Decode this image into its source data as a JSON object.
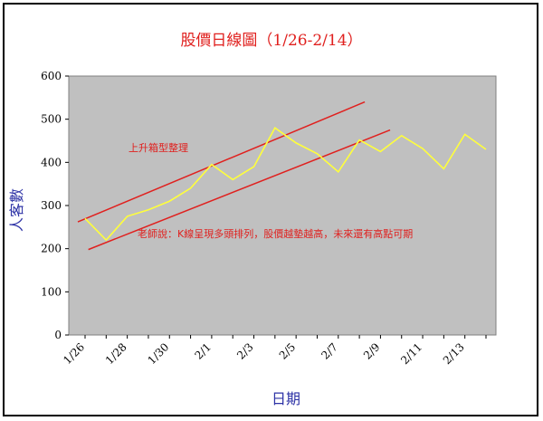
{
  "chart_data": {
    "type": "line",
    "title": "股價日線圖（1/26-2/14）",
    "xlabel": "日期",
    "ylabel": "人客數",
    "ylim": [
      0,
      600
    ],
    "yticks": [
      0,
      100,
      200,
      300,
      400,
      500,
      600
    ],
    "x": [
      "1/26",
      "1/27",
      "1/28",
      "1/29",
      "1/30",
      "1/31",
      "2/1",
      "2/2",
      "2/3",
      "2/4",
      "2/5",
      "2/6",
      "2/7",
      "2/8",
      "2/9",
      "2/10",
      "2/11",
      "2/12",
      "2/13",
      "2/14"
    ],
    "xticklabels": [
      "1/26",
      "1/28",
      "1/30",
      "2/1",
      "2/3",
      "2/5",
      "2/7",
      "2/9",
      "2/11",
      "2/13"
    ],
    "series": [
      {
        "values": [
          270,
          220,
          275,
          290,
          310,
          340,
          395,
          360,
          390,
          480,
          445,
          420,
          378,
          452,
          425,
          462,
          432,
          385,
          465,
          430
        ]
      }
    ],
    "grid": false,
    "line_color": "#ffff3a",
    "plot_bg": "#c0c0c0",
    "trend_color": "#e0201e",
    "annotations": [
      "上升箱型整理",
      "老師說：K線呈現多頭排列，股價越墊越高，未來還有高點可期"
    ]
  }
}
